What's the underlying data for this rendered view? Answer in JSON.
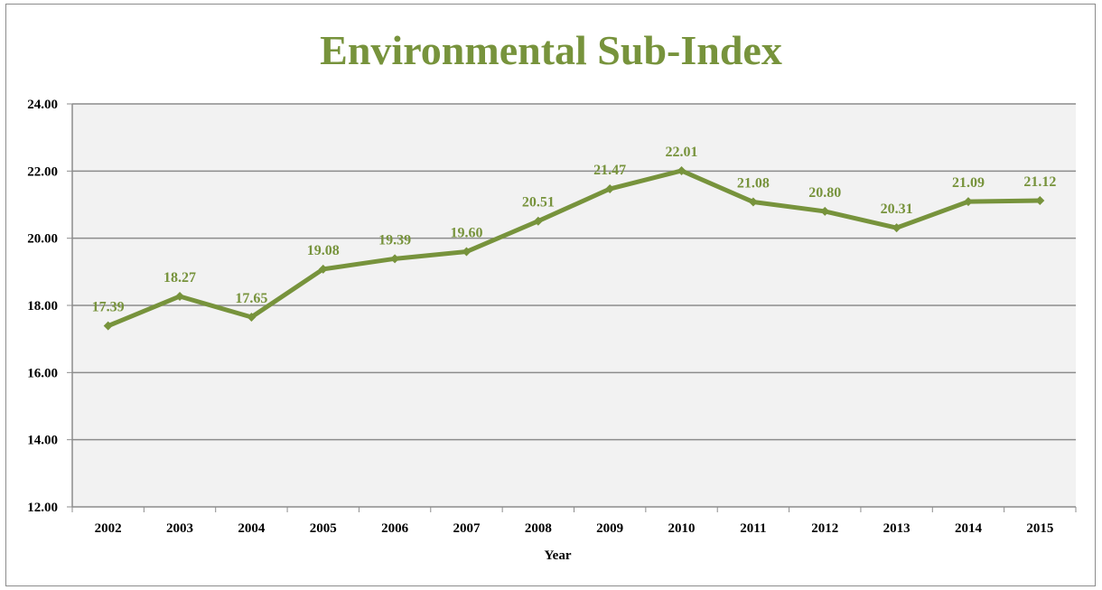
{
  "chart_data": {
    "type": "line",
    "title": "Environmental Sub-Index",
    "xlabel": "Year",
    "ylabel": "",
    "categories": [
      "2002",
      "2003",
      "2004",
      "2005",
      "2006",
      "2007",
      "2008",
      "2009",
      "2010",
      "2011",
      "2012",
      "2013",
      "2014",
      "2015"
    ],
    "series": [
      {
        "values": [
          17.39,
          18.27,
          17.65,
          19.08,
          19.39,
          19.6,
          20.51,
          21.47,
          22.01,
          21.08,
          20.8,
          20.31,
          21.09,
          21.12
        ]
      }
    ],
    "data_labels": [
      "17.39",
      "18.27",
      "17.65",
      "19.08",
      "19.39",
      "19.60",
      "20.51",
      "21.47",
      "22.01",
      "21.08",
      "20.80",
      "20.31",
      "21.09",
      "21.12"
    ],
    "ylim": [
      12,
      24
    ],
    "yticks": [
      "12.00",
      "14.00",
      "16.00",
      "18.00",
      "20.00",
      "22.00",
      "24.00"
    ],
    "grid": true,
    "legend": "none",
    "colors": {
      "line": "#77933c",
      "title": "#77933c",
      "labels": "#77933c",
      "plot_background": "#f2f2f2",
      "gridline": "#8c8c8c"
    }
  }
}
